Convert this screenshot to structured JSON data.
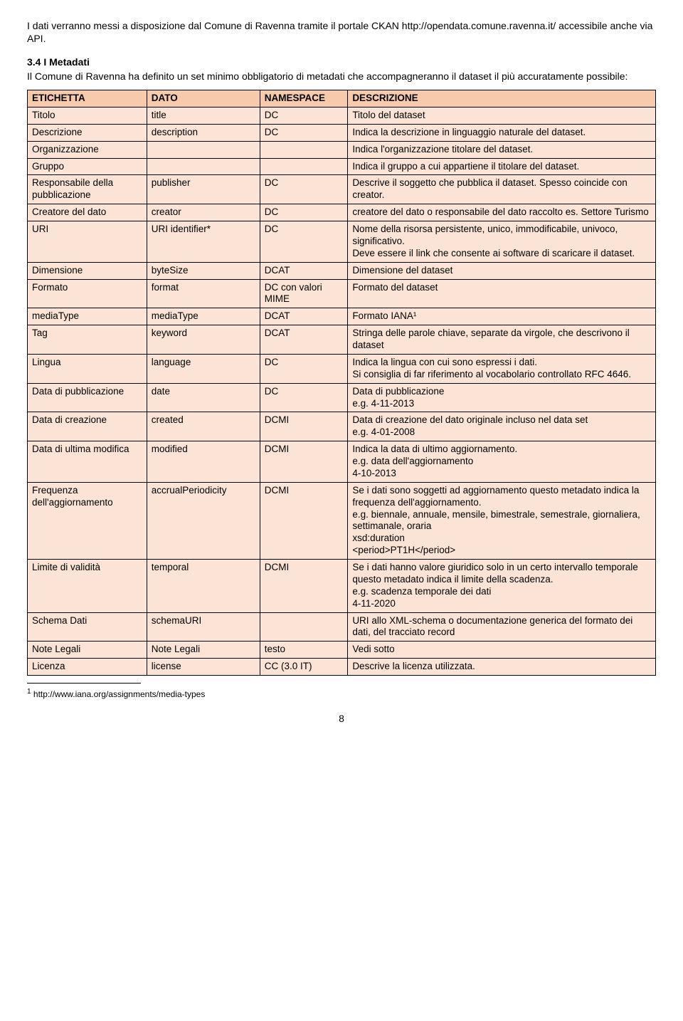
{
  "intro": {
    "line": "I dati verranno messi a disposizione dal Comune di Ravenna tramite il portale CKAN http://opendata.comune.ravenna.it/ accessibile anche via API."
  },
  "section": {
    "heading": "3.4 I Metadati",
    "body": "Il Comune di Ravenna ha definito un set minimo obbligatorio di metadati che accompagneranno il dataset il più accuratamente possibile:"
  },
  "table": {
    "columns": [
      "ETICHETTA",
      "DATO",
      "NAMESPACE",
      "DESCRIZIONE"
    ],
    "rows": [
      [
        "Titolo",
        "title",
        "DC",
        "Titolo del dataset"
      ],
      [
        "Descrizione",
        "description",
        "DC",
        "Indica la descrizione in linguaggio naturale del dataset."
      ],
      [
        "Organizzazione",
        "",
        "",
        "Indica l'organizzazione titolare del dataset."
      ],
      [
        "Gruppo",
        "",
        "",
        "Indica il gruppo a cui appartiene il titolare del dataset."
      ],
      [
        "Responsabile della pubblicazione",
        "publisher",
        "DC",
        "Descrive il soggetto che pubblica il dataset. Spesso coincide con creator."
      ],
      [
        "Creatore del dato",
        "creator",
        "DC",
        "creatore del dato o responsabile del dato raccolto es. Settore Turismo"
      ],
      [
        "URI",
        "URI identifier*",
        "DC",
        "Nome della risorsa persistente, unico, immodificabile, univoco, significativo.\nDeve essere il link che consente ai software di scaricare il dataset."
      ],
      [
        "Dimensione",
        "byteSize",
        "DCAT",
        "Dimensione del dataset"
      ],
      [
        "Formato",
        "format",
        "DC con valori MIME",
        "Formato del dataset"
      ],
      [
        "mediaType",
        "mediaType",
        "DCAT",
        "Formato IANA¹"
      ],
      [
        "Tag",
        "keyword",
        "DCAT",
        "Stringa delle parole chiave, separate da virgole, che descrivono il dataset"
      ],
      [
        "Lingua",
        "language",
        "DC",
        "Indica la lingua con cui sono espressi i dati.\nSi consiglia di far riferimento al vocabolario controllato RFC 4646."
      ],
      [
        "Data di pubblicazione",
        "date",
        "DC",
        "Data di pubblicazione\ne.g. 4-11-2013"
      ],
      [
        "Data di creazione",
        "created",
        "DCMI",
        "Data di creazione del dato originale incluso nel data set\ne.g. 4-01-2008"
      ],
      [
        "Data di ultima modifica",
        "modified",
        "DCMI",
        "Indica la data di ultimo aggiornamento.\ne.g. data dell'aggiornamento\n4-10-2013"
      ],
      [
        "Frequenza dell'aggiornamento",
        "accrualPeriodicity",
        "DCMI",
        "Se i dati sono soggetti ad aggiornamento questo metadato indica la frequenza dell'aggiornamento.\ne.g. biennale, annuale, mensile, bimestrale, semestrale, giornaliera, settimanale, oraria\nxsd:duration\n<period>PT1H</period>"
      ],
      [
        "Limite di validità",
        "temporal",
        "DCMI",
        "Se i dati hanno valore giuridico solo in un certo intervallo temporale questo metadato indica il limite della scadenza.\ne.g. scadenza temporale dei dati\n4-11-2020"
      ],
      [
        "Schema Dati",
        "schemaURI",
        "",
        "URI allo XML-schema o documentazione generica del formato dei dati, del tracciato record"
      ],
      [
        "Note Legali",
        "Note Legali",
        "testo",
        "Vedi sotto"
      ],
      [
        "Licenza",
        "license",
        "CC (3.0 IT)",
        "Descrive la licenza utilizzata."
      ]
    ]
  },
  "footnote": {
    "marker": "1",
    "text": "http://www.iana.org/assignments/media-types"
  },
  "pagenum": "8",
  "colors": {
    "header_bg": "#f7caac",
    "body_bg": "#fbe4d5",
    "border": "#000000",
    "text": "#000000",
    "page_bg": "#ffffff"
  }
}
